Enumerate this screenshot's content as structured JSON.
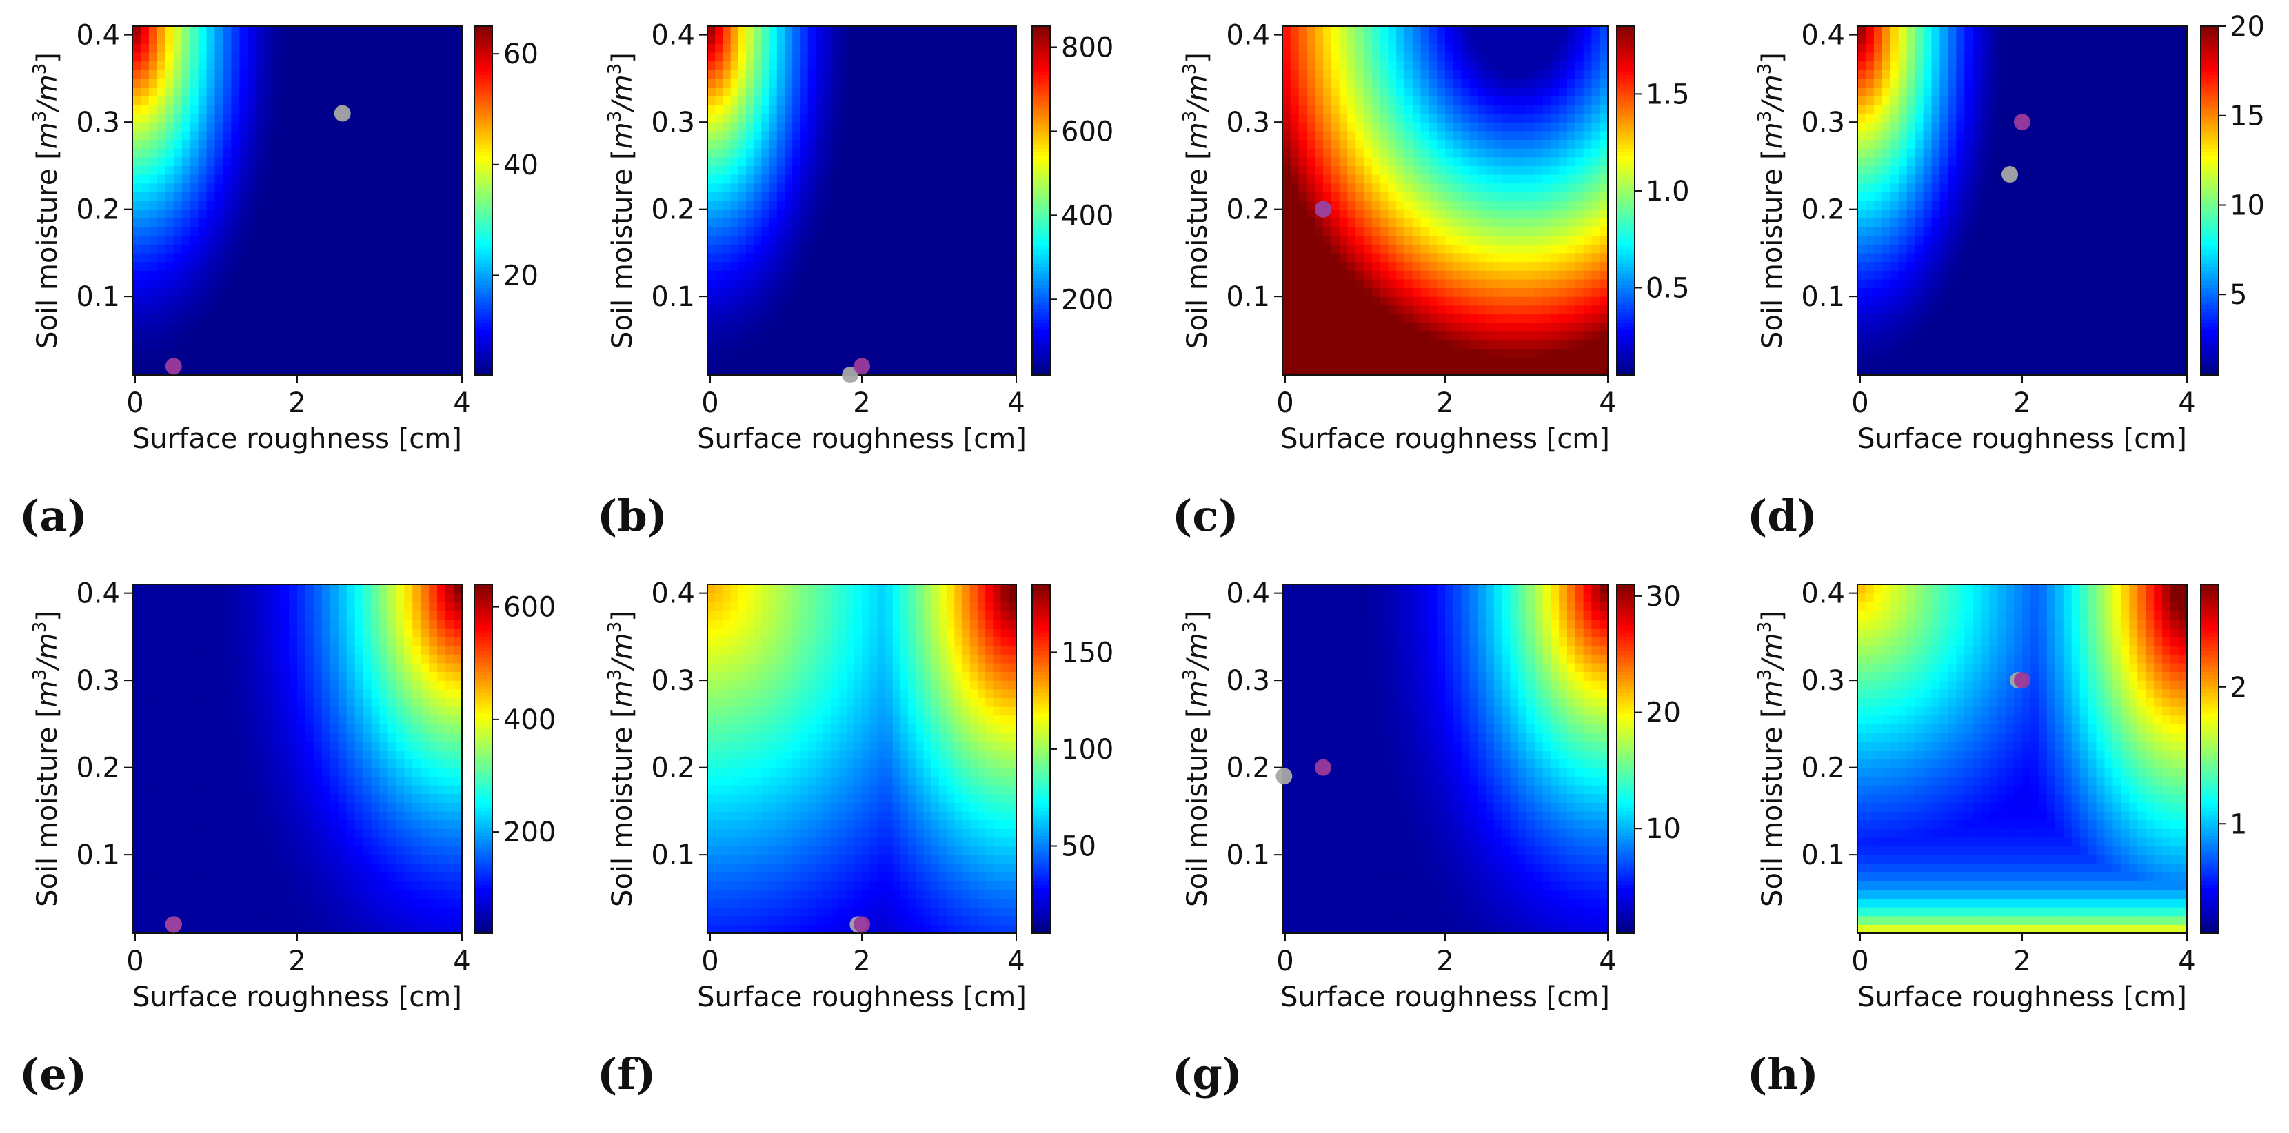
{
  "figure": {
    "description_free": true
  },
  "chart_data": [
    {
      "panel": "(a)",
      "type": "heatmap",
      "pattern": "a",
      "xlabel": "Surface roughness [cm]",
      "ylabel_text": "Soil moisture [",
      "ylabel_unit": "m",
      "ylabel_close": "]",
      "xlim": [
        0,
        4
      ],
      "ylim": [
        0.01,
        0.41
      ],
      "xticks": [
        "0",
        "2",
        "4"
      ],
      "yticks": [
        "0.1",
        "0.2",
        "0.3",
        "0.4"
      ],
      "colorbar": {
        "min": 2,
        "max": 65,
        "ticks": [
          "20",
          "40",
          "60"
        ],
        "tick_values": [
          20,
          40,
          60
        ]
      },
      "points": [
        {
          "color": "gray",
          "x": 2.55,
          "y": 0.31
        },
        {
          "color": "purple",
          "x": 0.5,
          "y": 0.02
        }
      ]
    },
    {
      "panel": "(b)",
      "type": "heatmap",
      "pattern": "b",
      "xlabel": "Surface roughness [cm]",
      "ylabel_text": "Soil moisture [",
      "ylabel_unit": "m",
      "ylabel_close": "]",
      "xlim": [
        0,
        4
      ],
      "ylim": [
        0.01,
        0.41
      ],
      "xticks": [
        "0",
        "2",
        "4"
      ],
      "yticks": [
        "0.1",
        "0.2",
        "0.3",
        "0.4"
      ],
      "colorbar": {
        "min": 20,
        "max": 850,
        "ticks": [
          "200",
          "400",
          "600",
          "800"
        ],
        "tick_values": [
          200,
          400,
          600,
          800
        ]
      },
      "points": [
        {
          "color": "gray",
          "x": 1.85,
          "y": 0.01
        },
        {
          "color": "purple",
          "x": 2.0,
          "y": 0.02
        }
      ]
    },
    {
      "panel": "(c)",
      "type": "heatmap",
      "pattern": "c",
      "xlabel": "Surface roughness [cm]",
      "ylabel_text": "Soil moisture [",
      "ylabel_unit": "m",
      "ylabel_close": "]",
      "xlim": [
        0,
        4
      ],
      "ylim": [
        0.01,
        0.41
      ],
      "xticks": [
        "0",
        "2",
        "4"
      ],
      "yticks": [
        "0.1",
        "0.2",
        "0.3",
        "0.4"
      ],
      "colorbar": {
        "min": 0.05,
        "max": 1.85,
        "ticks": [
          "0.5",
          "1.0",
          "1.5"
        ],
        "tick_values": [
          0.5,
          1.0,
          1.5
        ]
      },
      "points": [
        {
          "color": "gray",
          "x": 0.5,
          "y": 0.2
        },
        {
          "color": "purple",
          "x": 0.5,
          "y": 0.2
        }
      ]
    },
    {
      "panel": "(d)",
      "type": "heatmap",
      "pattern": "d",
      "xlabel": "Surface roughness [cm]",
      "ylabel_text": "Soil moisture [",
      "ylabel_unit": "m",
      "ylabel_close": "]",
      "xlim": [
        0,
        4
      ],
      "ylim": [
        0.01,
        0.41
      ],
      "xticks": [
        "0",
        "2",
        "4"
      ],
      "yticks": [
        "0.1",
        "0.2",
        "0.3",
        "0.4"
      ],
      "colorbar": {
        "min": 0.5,
        "max": 20,
        "ticks": [
          "5",
          "10",
          "15",
          "20"
        ],
        "tick_values": [
          5,
          10,
          15,
          20
        ]
      },
      "points": [
        {
          "color": "gray",
          "x": 1.85,
          "y": 0.24
        },
        {
          "color": "purple",
          "x": 2.0,
          "y": 0.3
        }
      ]
    },
    {
      "panel": "(e)",
      "type": "heatmap",
      "pattern": "e",
      "xlabel": "Surface roughness [cm]",
      "ylabel_text": "Soil moisture [",
      "ylabel_unit": "m",
      "ylabel_close": "]",
      "xlim": [
        0,
        4
      ],
      "ylim": [
        0.01,
        0.41
      ],
      "xticks": [
        "0",
        "2",
        "4"
      ],
      "yticks": [
        "0.1",
        "0.2",
        "0.3",
        "0.4"
      ],
      "colorbar": {
        "min": 20,
        "max": 640,
        "ticks": [
          "200",
          "400",
          "600"
        ],
        "tick_values": [
          200,
          400,
          600
        ]
      },
      "points": [
        {
          "color": "gray",
          "x": 0.5,
          "y": 0.02
        },
        {
          "color": "purple",
          "x": 0.5,
          "y": 0.02
        }
      ]
    },
    {
      "panel": "(f)",
      "type": "heatmap",
      "pattern": "f",
      "xlabel": "Surface roughness [cm]",
      "ylabel_text": "Soil moisture [",
      "ylabel_unit": "m",
      "ylabel_close": "]",
      "xlim": [
        0,
        4
      ],
      "ylim": [
        0.01,
        0.41
      ],
      "xticks": [
        "0",
        "2",
        "4"
      ],
      "yticks": [
        "0.1",
        "0.2",
        "0.3",
        "0.4"
      ],
      "colorbar": {
        "min": 5,
        "max": 185,
        "ticks": [
          "50",
          "100",
          "150"
        ],
        "tick_values": [
          50,
          100,
          150
        ]
      },
      "points": [
        {
          "color": "gray",
          "x": 1.95,
          "y": 0.02
        },
        {
          "color": "purple",
          "x": 2.0,
          "y": 0.02
        }
      ]
    },
    {
      "panel": "(g)",
      "type": "heatmap",
      "pattern": "g",
      "xlabel": "Surface roughness [cm]",
      "ylabel_text": "Soil moisture [",
      "ylabel_unit": "m",
      "ylabel_close": "]",
      "xlim": [
        0,
        4
      ],
      "ylim": [
        0.01,
        0.41
      ],
      "xticks": [
        "0",
        "2",
        "4"
      ],
      "yticks": [
        "0.1",
        "0.2",
        "0.3",
        "0.4"
      ],
      "colorbar": {
        "min": 1,
        "max": 31,
        "ticks": [
          "10",
          "20",
          "30"
        ],
        "tick_values": [
          10,
          20,
          30
        ]
      },
      "points": [
        {
          "color": "gray",
          "x": 0.02,
          "y": 0.19
        },
        {
          "color": "purple",
          "x": 0.5,
          "y": 0.2
        }
      ]
    },
    {
      "panel": "(h)",
      "type": "heatmap",
      "pattern": "h",
      "xlabel": "Surface roughness [cm]",
      "ylabel_text": "Soil moisture [",
      "ylabel_unit": "m",
      "ylabel_close": "]",
      "xlim": [
        0,
        4
      ],
      "ylim": [
        0.01,
        0.41
      ],
      "xticks": [
        "0",
        "2",
        "4"
      ],
      "yticks": [
        "0.1",
        "0.2",
        "0.3",
        "0.4"
      ],
      "colorbar": {
        "min": 0.2,
        "max": 2.75,
        "ticks": [
          "1",
          "2"
        ],
        "tick_values": [
          1,
          2
        ]
      },
      "points": [
        {
          "color": "gray",
          "x": 1.95,
          "y": 0.3
        },
        {
          "color": "purple",
          "x": 2.0,
          "y": 0.3
        }
      ]
    }
  ],
  "colors": {
    "gray_point": "#a6a6a6",
    "purple_point": "#9b3a9b",
    "axis": "#111111"
  }
}
